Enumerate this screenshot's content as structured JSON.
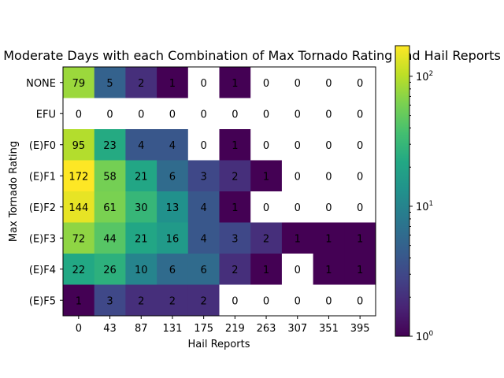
{
  "chart_data": {
    "type": "heatmap",
    "title": "Moderate Days with each Combination of Max Tornado Rating and Hail Reports",
    "xlabel": "Hail Reports",
    "ylabel": "Max Tornado Rating",
    "x_categories": [
      "0",
      "43",
      "87",
      "131",
      "175",
      "219",
      "263",
      "307",
      "351",
      "395"
    ],
    "y_categories": [
      "NONE",
      "EFU",
      "(E)F0",
      "(E)F1",
      "(E)F2",
      "(E)F3",
      "(E)F4",
      "(E)F5"
    ],
    "values": [
      [
        79,
        5,
        2,
        1,
        0,
        1,
        0,
        0,
        0,
        0
      ],
      [
        0,
        0,
        0,
        0,
        0,
        0,
        0,
        0,
        0,
        0
      ],
      [
        95,
        23,
        4,
        4,
        0,
        1,
        0,
        0,
        0,
        0
      ],
      [
        172,
        58,
        21,
        6,
        3,
        2,
        1,
        0,
        0,
        0
      ],
      [
        144,
        61,
        30,
        13,
        4,
        1,
        0,
        0,
        0,
        0
      ],
      [
        72,
        44,
        21,
        16,
        4,
        3,
        2,
        1,
        1,
        1
      ],
      [
        22,
        26,
        10,
        6,
        6,
        2,
        1,
        0,
        1,
        1
      ],
      [
        1,
        3,
        2,
        2,
        2,
        0,
        0,
        0,
        0,
        0
      ]
    ],
    "colorscale": "viridis",
    "color_scale_type": "log",
    "color_range": [
      1,
      172
    ],
    "zero_cells_color": "#ffffff",
    "colorbar": {
      "ticks": [
        {
          "value": 1,
          "base": "10",
          "exp": "0"
        },
        {
          "value": 10,
          "base": "10",
          "exp": "1"
        },
        {
          "value": 100,
          "base": "10",
          "exp": "2"
        }
      ]
    }
  }
}
